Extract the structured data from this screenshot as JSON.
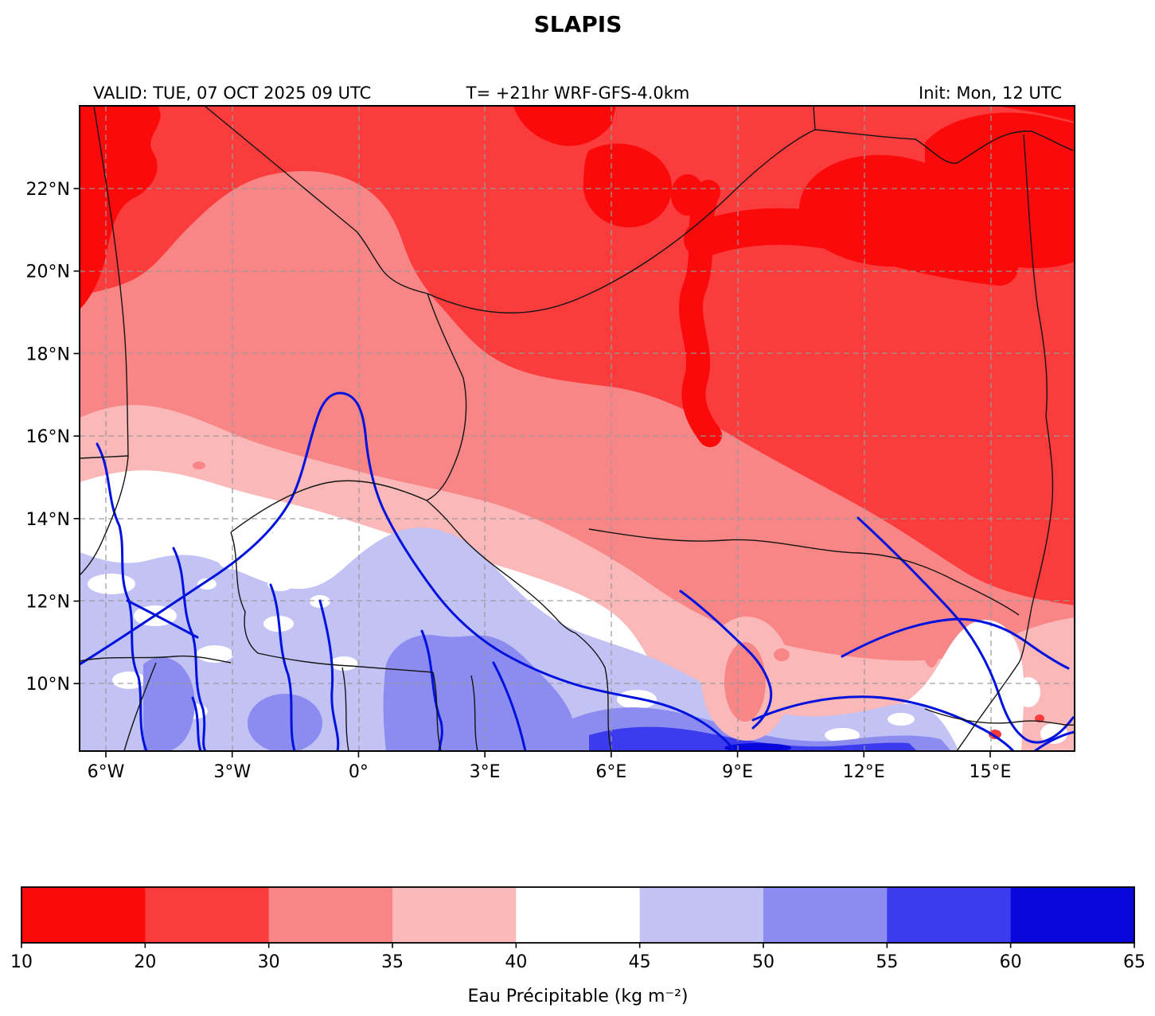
{
  "title": "SLAPIS",
  "header": {
    "valid": "VALID: TUE, 07 OCT 2025 09 UTC",
    "model": "T= +21hr WRF-GFS-4.0km",
    "init": "Init: Mon, 12 UTC"
  },
  "axes": {
    "y_ticks": [
      "22°N",
      "20°N",
      "18°N",
      "16°N",
      "14°N",
      "12°N",
      "10°N"
    ],
    "x_ticks": [
      "6°W",
      "3°W",
      "0°",
      "3°E",
      "6°E",
      "9°E",
      "12°E",
      "15°E"
    ]
  },
  "colorbar": {
    "label": "Eau Précipitable (kg m⁻²)",
    "tick_values": [
      "10",
      "20",
      "30",
      "35",
      "40",
      "45",
      "50",
      "55",
      "60",
      "65"
    ],
    "segment_colors": [
      "#fa0a0a",
      "#fa3c3c",
      "#f98686",
      "#fbb8b8",
      "#ffffff",
      "#c2c2f4",
      "#8c8cf0",
      "#3c3cee",
      "#0808dd"
    ],
    "segment_ranges": [
      "10-20",
      "20-30",
      "30-35",
      "35-40",
      "40-45",
      "45-50",
      "50-55",
      "55-60",
      "60-65"
    ]
  },
  "map_data": {
    "type": "filled-contour weather map",
    "variable": "Eau Précipitable (precipitable water)",
    "units": "kg m⁻²",
    "lon_range": [
      -6.6,
      17.0
    ],
    "lat_range": [
      8.4,
      24.0
    ],
    "grid_interval_deg": {
      "lon": 3,
      "lat": 2
    },
    "pattern": "low values (red, 10-30) over the Sahara in the north and northeast; 30-40 (salmon/pink) transition band around 15-18N sloping down to 12N in the east; 40-45 (white) band around 12-15N; high values 45-60+ (blues) in the south below ~12N; blue river network (Niger bend, Senegal, Volta, Benue) and black national borders overlaid"
  }
}
